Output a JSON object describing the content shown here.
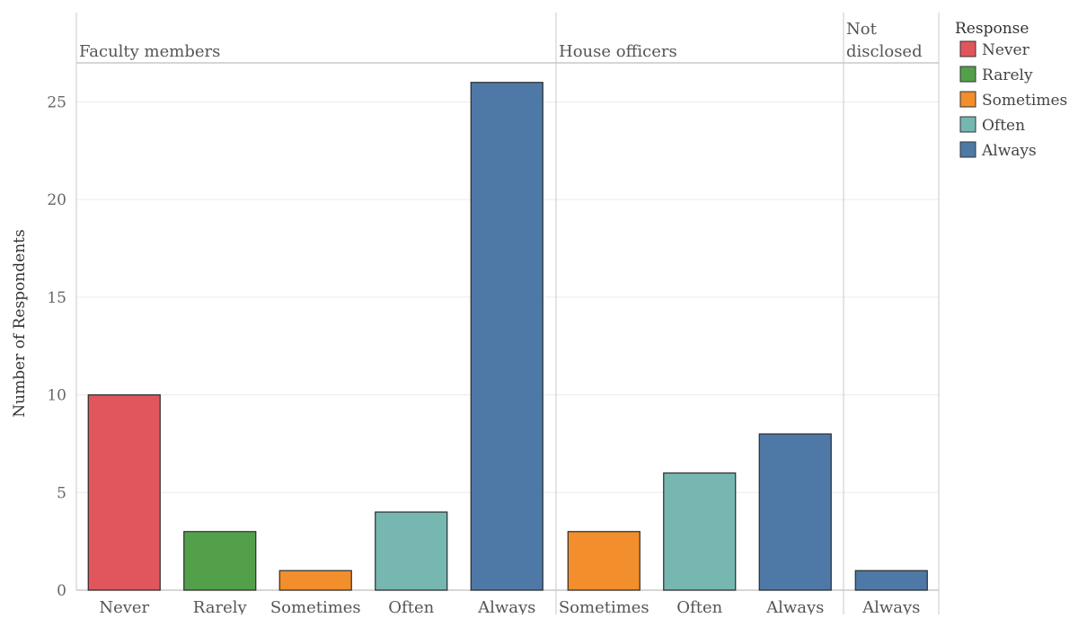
{
  "chart_data": {
    "type": "bar",
    "ylabel": "Number of Respondents",
    "ylim": [
      0,
      27
    ],
    "yticks": [
      0,
      5,
      10,
      15,
      20,
      25
    ],
    "grid": true,
    "legend": {
      "title": "Response",
      "placement": "right",
      "items": [
        {
          "label": "Never",
          "color": "#e0565c"
        },
        {
          "label": "Rarely",
          "color": "#53a04b"
        },
        {
          "label": "Sometimes",
          "color": "#f28e2b"
        },
        {
          "label": "Often",
          "color": "#76b7b2"
        },
        {
          "label": "Always",
          "color": "#4e79a7"
        }
      ]
    },
    "panels": [
      {
        "title_lines": [
          "Faculty members"
        ],
        "categories": [
          "Never",
          "Rarely",
          "Sometimes",
          "Often",
          "Always"
        ],
        "values": [
          10,
          3,
          1,
          4,
          26
        ]
      },
      {
        "title_lines": [
          "House officers"
        ],
        "categories": [
          "Sometimes",
          "Often",
          "Always"
        ],
        "values": [
          3,
          6,
          8
        ]
      },
      {
        "title_lines": [
          "Not",
          "disclosed"
        ],
        "categories": [
          "Always"
        ],
        "values": [
          1
        ]
      }
    ]
  }
}
